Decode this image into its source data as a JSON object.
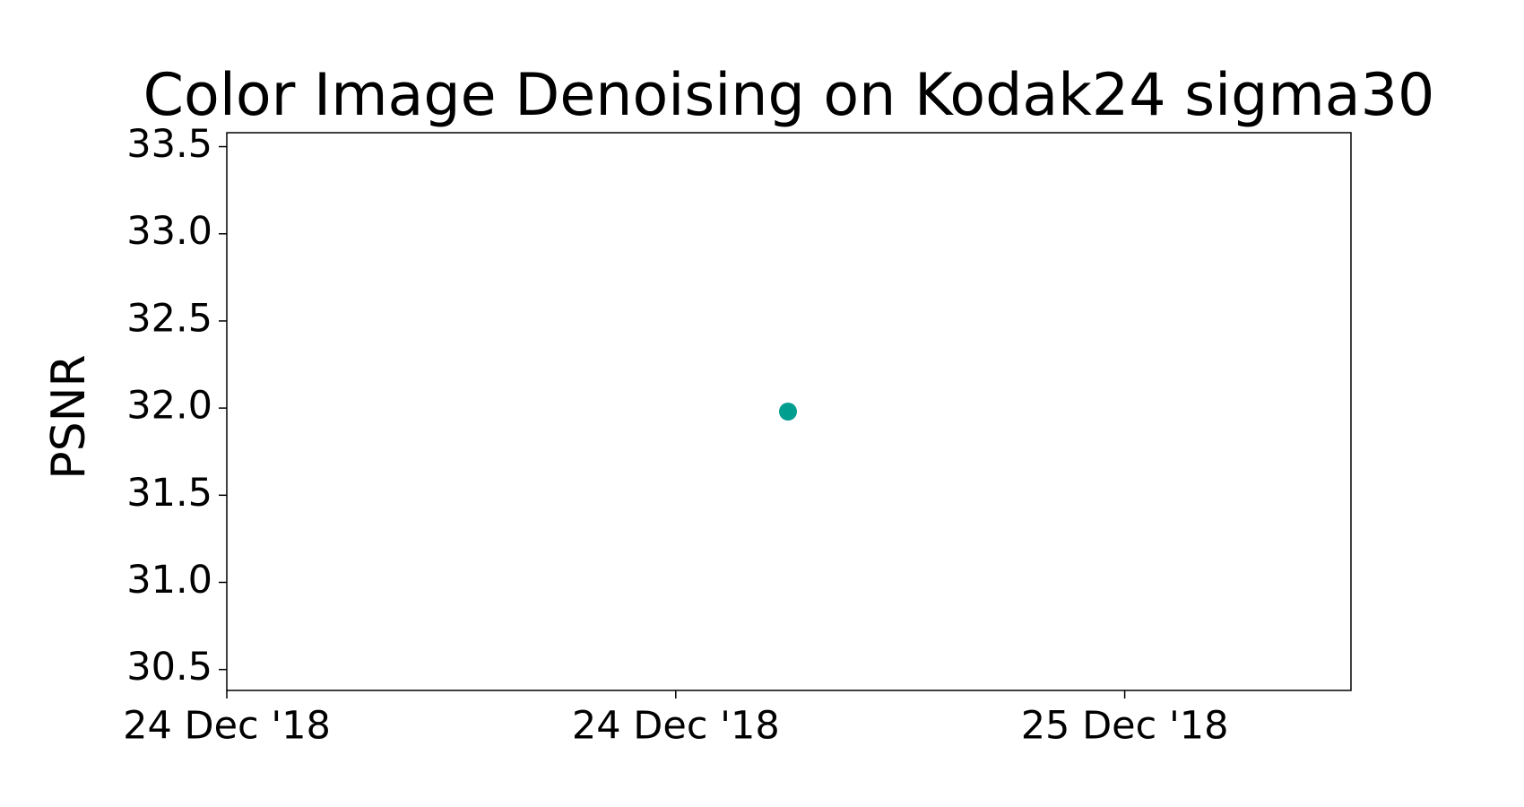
{
  "chart_data": {
    "type": "scatter",
    "title": "Color Image Denoising on Kodak24 sigma30",
    "y_label": "PSNR",
    "x": [
      0.625
    ],
    "series": [
      {
        "color": "#009e8f",
        "values": [
          31.98
        ]
      }
    ],
    "xlim": [
      0,
      1.252
    ],
    "xticks": [
      {
        "value": 0,
        "label": "24 Dec '18"
      },
      {
        "value": 0.5,
        "label": "24 Dec '18"
      },
      {
        "value": 1,
        "label": "25 Dec '18"
      }
    ],
    "ylim": [
      30.38,
      33.58
    ],
    "yticks": [
      {
        "value": 30.5,
        "label": "30.5"
      },
      {
        "value": 31,
        "label": "31.0"
      },
      {
        "value": 31.5,
        "label": "31.5"
      },
      {
        "value": 32,
        "label": "32.0"
      },
      {
        "value": 32.5,
        "label": "32.5"
      },
      {
        "value": 33,
        "label": "33.0"
      },
      {
        "value": 33.5,
        "label": "33.5"
      }
    ],
    "grid": false
  }
}
